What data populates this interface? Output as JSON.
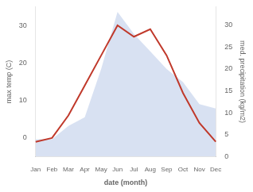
{
  "chart_data": {
    "type": "line",
    "categories": [
      "Jan",
      "Feb",
      "Mar",
      "Apr",
      "May",
      "Jun",
      "Jul",
      "Aug",
      "Sep",
      "Oct",
      "Nov",
      "Dec"
    ],
    "series": [
      {
        "type": "line",
        "color": "#c0392b",
        "values": [
          -1,
          0,
          6,
          14,
          22,
          30,
          27,
          29,
          22,
          12,
          4,
          -1
        ]
      },
      {
        "type": "area",
        "color": "#b8c9e8",
        "axis": "y2",
        "values": [
          4,
          4,
          7,
          9,
          20,
          33,
          28,
          24,
          20,
          17,
          12,
          11
        ]
      }
    ],
    "xlabel": "date (month)",
    "ylabel": "max temp (C)",
    "y2label": "med. precipitation (kg/m2)",
    "ylim": [
      -5,
      35
    ],
    "yticks": [
      0,
      10,
      20,
      30
    ],
    "y2lim": [
      0,
      34.2
    ],
    "y2ticks": [
      0,
      5,
      10,
      15,
      20,
      25,
      30
    ],
    "grid": false
  }
}
